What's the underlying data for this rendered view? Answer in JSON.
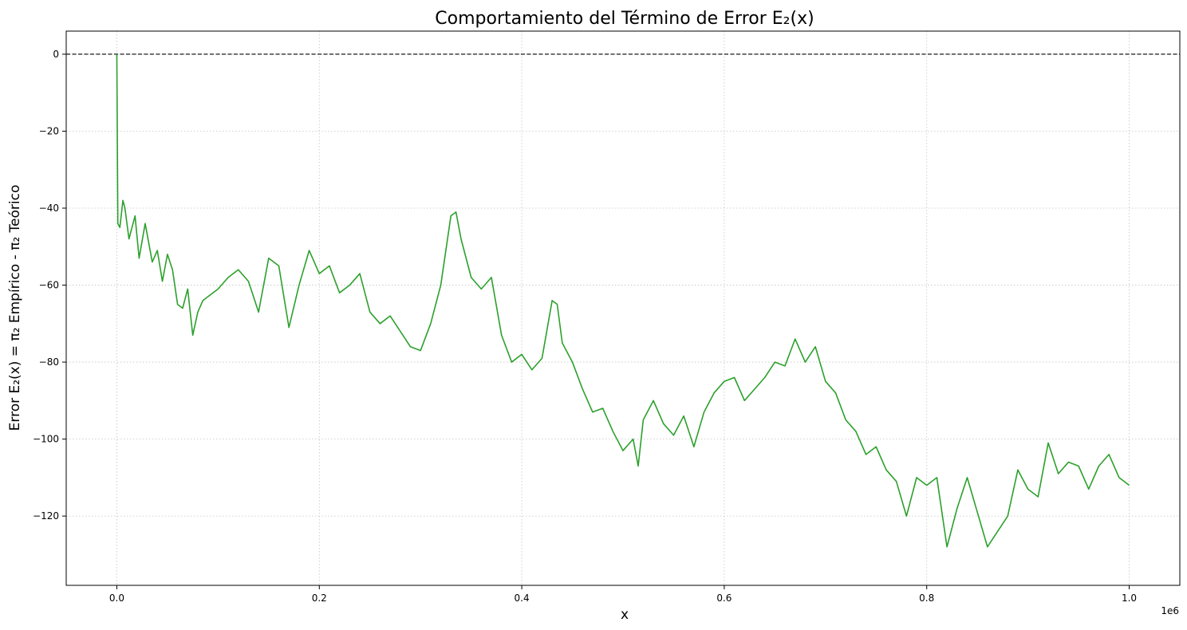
{
  "chart_data": {
    "type": "line",
    "title": "Comportamiento del Término de Error E₂(x)",
    "xlabel": "x",
    "ylabel": "Error E₂(x) = π₂ Empírico - π₂ Teórico",
    "x_offset_label": "1e6",
    "xlim": [
      -0.05,
      1.05
    ],
    "ylim": [
      -138,
      6
    ],
    "x_ticks": [
      0.0,
      0.2,
      0.4,
      0.6,
      0.8,
      1.0
    ],
    "x_tick_labels": [
      "0.0",
      "0.2",
      "0.4",
      "0.6",
      "0.8",
      "1.0"
    ],
    "y_ticks": [
      0,
      -20,
      -40,
      -60,
      -80,
      -100,
      -120
    ],
    "y_tick_labels": [
      "0",
      "−20",
      "−40",
      "−60",
      "−80",
      "−100",
      "−120"
    ],
    "grid": true,
    "reference_line": {
      "y": 0,
      "style": "dashed",
      "color": "#000000"
    },
    "series": [
      {
        "color": "#2ca02c",
        "x": [
          0,
          0.001,
          0.003,
          0.006,
          0.008,
          0.012,
          0.018,
          0.022,
          0.028,
          0.035,
          0.04,
          0.045,
          0.05,
          0.055,
          0.06,
          0.065,
          0.07,
          0.075,
          0.08,
          0.085,
          0.09,
          0.1,
          0.11,
          0.12,
          0.13,
          0.14,
          0.15,
          0.16,
          0.17,
          0.18,
          0.19,
          0.2,
          0.21,
          0.22,
          0.23,
          0.24,
          0.25,
          0.26,
          0.27,
          0.28,
          0.29,
          0.3,
          0.31,
          0.32,
          0.33,
          0.335,
          0.34,
          0.35,
          0.36,
          0.37,
          0.38,
          0.39,
          0.4,
          0.41,
          0.42,
          0.43,
          0.435,
          0.44,
          0.45,
          0.46,
          0.47,
          0.48,
          0.49,
          0.5,
          0.51,
          0.515,
          0.52,
          0.53,
          0.54,
          0.55,
          0.56,
          0.57,
          0.58,
          0.59,
          0.6,
          0.61,
          0.62,
          0.63,
          0.64,
          0.65,
          0.66,
          0.67,
          0.68,
          0.69,
          0.7,
          0.71,
          0.72,
          0.73,
          0.74,
          0.75,
          0.76,
          0.77,
          0.78,
          0.79,
          0.8,
          0.81,
          0.82,
          0.83,
          0.84,
          0.85,
          0.86,
          0.87,
          0.88,
          0.89,
          0.9,
          0.91,
          0.92,
          0.93,
          0.94,
          0.95,
          0.96,
          0.97,
          0.98,
          0.99,
          1.0
        ],
        "y": [
          0,
          -44,
          -45,
          -38,
          -40,
          -48,
          -42,
          -53,
          -44,
          -54,
          -51,
          -59,
          -52,
          -56,
          -65,
          -66,
          -61,
          -73,
          -67,
          -64,
          -63,
          -61,
          -58,
          -56,
          -59,
          -67,
          -53,
          -55,
          -71,
          -60,
          -51,
          -57,
          -55,
          -62,
          -60,
          -57,
          -67,
          -70,
          -68,
          -72,
          -76,
          -77,
          -70,
          -60,
          -42,
          -41,
          -48,
          -58,
          -61,
          -58,
          -73,
          -80,
          -78,
          -82,
          -79,
          -64,
          -65,
          -75,
          -80,
          -87,
          -93,
          -92,
          -98,
          -103,
          -100,
          -107,
          -95,
          -90,
          -96,
          -99,
          -94,
          -102,
          -93,
          -88,
          -85,
          -84,
          -90,
          -87,
          -84,
          -80,
          -81,
          -74,
          -80,
          -76,
          -85,
          -88,
          -95,
          -98,
          -104,
          -102,
          -108,
          -111,
          -120,
          -110,
          -112,
          -110,
          -128,
          -118,
          -110,
          -119,
          -128,
          -124,
          -120,
          -108,
          -113,
          -115,
          -101,
          -109,
          -106,
          -107,
          -113,
          -107,
          -104,
          -110,
          -112
        ]
      }
    ]
  }
}
